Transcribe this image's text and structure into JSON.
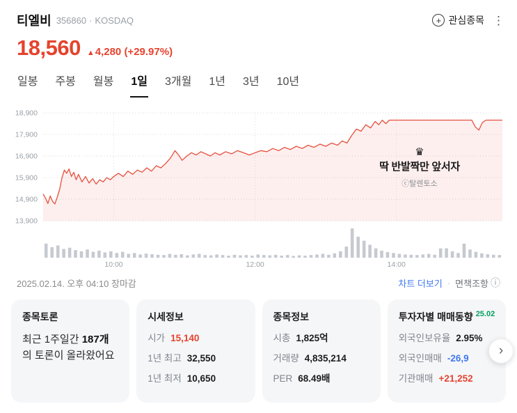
{
  "icons": {
    "plus": "+",
    "more": "⋮",
    "info": "ⓘ",
    "chevron_right": "›",
    "crown": "♛",
    "up_arrow": "▲",
    "dot": "·"
  },
  "header": {
    "stock_name": "티엘비",
    "stock_code": "356860",
    "separator": "·",
    "market": "KOSDAQ",
    "watchlist_label": "관심종목"
  },
  "price": {
    "current": "18,560",
    "change": "4,280",
    "change_pct": "(+29.97%)"
  },
  "tabs": [
    {
      "label": "일봉",
      "active": false
    },
    {
      "label": "주봉",
      "active": false
    },
    {
      "label": "월봉",
      "active": false
    },
    {
      "label": "1일",
      "active": true
    },
    {
      "label": "3개월",
      "active": false
    },
    {
      "label": "1년",
      "active": false
    },
    {
      "label": "3년",
      "active": false
    },
    {
      "label": "10년",
      "active": false
    }
  ],
  "chart_data": {
    "type": "line",
    "title": "",
    "x_unit": "minutes_from_09:00",
    "x_range": [
      0,
      390
    ],
    "y_range": [
      13900,
      18900
    ],
    "grid": true,
    "y_ticks": [
      {
        "value": 18900,
        "label": "18,900"
      },
      {
        "value": 17900,
        "label": "17,900"
      },
      {
        "value": 16900,
        "label": "16,900"
      },
      {
        "value": 15900,
        "label": "15,900"
      },
      {
        "value": 14900,
        "label": "14,900"
      },
      {
        "value": 13900,
        "label": "13,900"
      }
    ],
    "x_ticks": [
      {
        "t": 60,
        "label": "10:00"
      },
      {
        "t": 180,
        "label": "12:00"
      },
      {
        "t": 300,
        "label": "14:00"
      }
    ],
    "line_color": "#e5503e",
    "fill_color": "rgba(229,80,62,0.09)",
    "volume_color": "#c6cad0",
    "price_points": [
      [
        0,
        15140
      ],
      [
        2,
        14950
      ],
      [
        4,
        14700
      ],
      [
        6,
        15050
      ],
      [
        8,
        14800
      ],
      [
        10,
        14680
      ],
      [
        12,
        15000
      ],
      [
        14,
        15350
      ],
      [
        16,
        15900
      ],
      [
        18,
        16250
      ],
      [
        20,
        16100
      ],
      [
        22,
        16300
      ],
      [
        24,
        15950
      ],
      [
        26,
        16150
      ],
      [
        28,
        15800
      ],
      [
        30,
        16050
      ],
      [
        33,
        15700
      ],
      [
        36,
        15950
      ],
      [
        39,
        15650
      ],
      [
        42,
        15850
      ],
      [
        45,
        15600
      ],
      [
        48,
        15800
      ],
      [
        51,
        15700
      ],
      [
        54,
        15900
      ],
      [
        57,
        15800
      ],
      [
        60,
        15950
      ],
      [
        64,
        16100
      ],
      [
        68,
        15950
      ],
      [
        72,
        16200
      ],
      [
        76,
        16050
      ],
      [
        80,
        16250
      ],
      [
        84,
        16150
      ],
      [
        88,
        16350
      ],
      [
        92,
        16200
      ],
      [
        96,
        16450
      ],
      [
        100,
        16350
      ],
      [
        104,
        16550
      ],
      [
        108,
        16800
      ],
      [
        112,
        17150
      ],
      [
        115,
        16950
      ],
      [
        118,
        16700
      ],
      [
        122,
        16900
      ],
      [
        126,
        17050
      ],
      [
        130,
        16950
      ],
      [
        134,
        17100
      ],
      [
        138,
        17000
      ],
      [
        142,
        16900
      ],
      [
        146,
        17050
      ],
      [
        150,
        16950
      ],
      [
        155,
        17100
      ],
      [
        160,
        17000
      ],
      [
        165,
        17150
      ],
      [
        170,
        17050
      ],
      [
        175,
        16950
      ],
      [
        180,
        17050
      ],
      [
        185,
        17150
      ],
      [
        190,
        17100
      ],
      [
        195,
        17250
      ],
      [
        200,
        17150
      ],
      [
        205,
        17300
      ],
      [
        210,
        17200
      ],
      [
        215,
        17350
      ],
      [
        220,
        17250
      ],
      [
        225,
        17400
      ],
      [
        230,
        17300
      ],
      [
        235,
        17450
      ],
      [
        240,
        17350
      ],
      [
        245,
        17500
      ],
      [
        250,
        17400
      ],
      [
        254,
        17600
      ],
      [
        258,
        17500
      ],
      [
        262,
        17850
      ],
      [
        266,
        18150
      ],
      [
        270,
        18050
      ],
      [
        274,
        18350
      ],
      [
        278,
        18200
      ],
      [
        282,
        18500
      ],
      [
        285,
        18350
      ],
      [
        288,
        18560
      ],
      [
        291,
        18400
      ],
      [
        294,
        18560
      ],
      [
        300,
        18560
      ],
      [
        310,
        18560
      ],
      [
        320,
        18560
      ],
      [
        330,
        18560
      ],
      [
        340,
        18560
      ],
      [
        350,
        18560
      ],
      [
        360,
        18560
      ],
      [
        364,
        18560
      ],
      [
        367,
        18250
      ],
      [
        370,
        18100
      ],
      [
        373,
        18450
      ],
      [
        376,
        18560
      ],
      [
        383,
        18560
      ],
      [
        390,
        18560
      ]
    ],
    "volume": [
      48,
      36,
      42,
      30,
      34,
      26,
      22,
      28,
      20,
      24,
      18,
      22,
      16,
      20,
      13,
      16,
      11,
      14,
      12,
      10,
      9,
      13,
      10,
      12,
      8,
      11,
      13,
      9,
      8,
      11,
      9,
      7,
      10,
      8,
      9,
      7,
      11,
      9,
      8,
      10,
      7,
      9,
      6,
      8,
      7,
      9,
      11,
      13,
      10,
      15,
      22,
      38,
      100,
      72,
      58,
      44,
      32,
      24,
      19,
      16,
      13,
      11,
      10,
      9,
      11,
      13,
      10,
      32,
      32,
      22,
      16,
      48,
      28,
      20,
      15,
      12,
      10,
      9
    ]
  },
  "chart_annotation": {
    "text": "딱 반발짝만 앞서자",
    "credit": "ⓒ탈렌토소"
  },
  "status_bar": {
    "datetime": "2025.02.14. 오후 04:10 장마감",
    "chart_more_label": "차트 더보기",
    "separator": "·",
    "disclaimer_label": "면책조항"
  },
  "cards": [
    {
      "title": "종목토론",
      "body_pre": "최근 1주일간 ",
      "body_bold": "187개",
      "body_post": "의 토론이 올라왔어요"
    },
    {
      "title": "시세정보",
      "rows": [
        {
          "label": "시가",
          "value": "15,140",
          "color": "red"
        },
        {
          "label": "1년 최고",
          "value": "32,550"
        },
        {
          "label": "1년 최저",
          "value": "10,650"
        }
      ]
    },
    {
      "title": "종목정보",
      "rows": [
        {
          "label": "시총",
          "value": "1,825억"
        },
        {
          "label": "거래량",
          "value": "4,835,214"
        },
        {
          "label": "PER",
          "value": "68.49배"
        }
      ]
    },
    {
      "title": "투자자별 매매동향",
      "badge": "25.02",
      "rows": [
        {
          "label": "외국인보유율",
          "value": "2.95%"
        },
        {
          "label": "외국인매매",
          "value": "-26,9",
          "color": "blue"
        },
        {
          "label": "기관매매",
          "value": "+21,252",
          "color": "red"
        }
      ]
    }
  ],
  "colors": {
    "up_red": "#e5432e",
    "down_blue": "#4078f0",
    "link_blue": "#4078f0",
    "badge_green": "#00a05e"
  }
}
